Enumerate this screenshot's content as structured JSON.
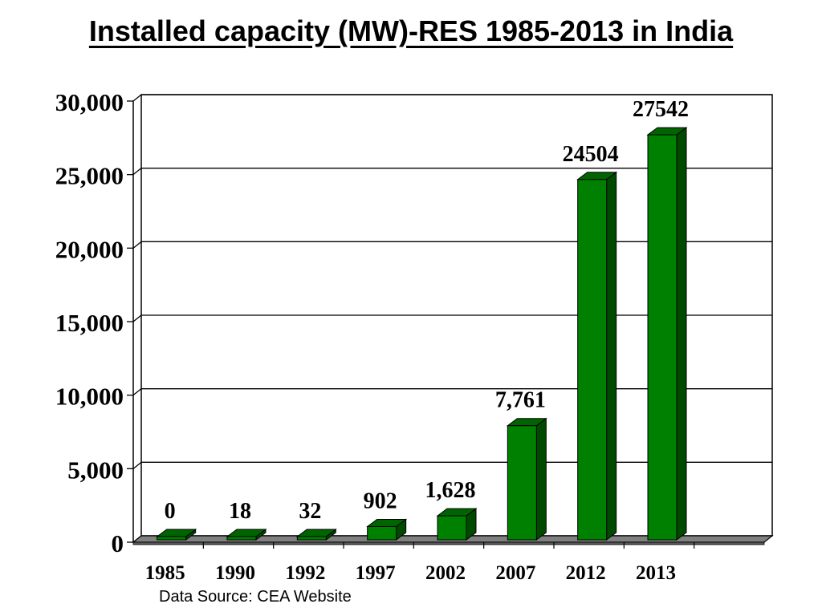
{
  "title": "Installed capacity (MW)-RES 1985-2013 in India",
  "source": "Data Source: CEA Website",
  "colors": {
    "bar_front": "#008000",
    "bar_top": "#006400",
    "bar_side": "#004a00",
    "floor": "#808080",
    "grid": "#000000"
  },
  "chart_data": {
    "type": "bar",
    "title": "Installed capacity (MW)-RES 1985-2013 in India",
    "xlabel": "",
    "ylabel": "",
    "categories": [
      "1985",
      "1990",
      "1992",
      "1997",
      "2002",
      "2007",
      "2012",
      "2013"
    ],
    "values": [
      0,
      18,
      32,
      902,
      1628,
      7761,
      24504,
      27542
    ],
    "data_labels": [
      "0",
      "18",
      "32",
      "902",
      "1,628",
      "7,761",
      "24504",
      "27542"
    ],
    "ylim": [
      0,
      30000
    ],
    "yticks": [
      0,
      5000,
      10000,
      15000,
      20000,
      25000,
      30000
    ],
    "ytick_labels": [
      "0",
      "5,000",
      "10,000",
      "15,000",
      "20,000",
      "25,000",
      "30,000"
    ],
    "grid": true,
    "legend": "none"
  }
}
